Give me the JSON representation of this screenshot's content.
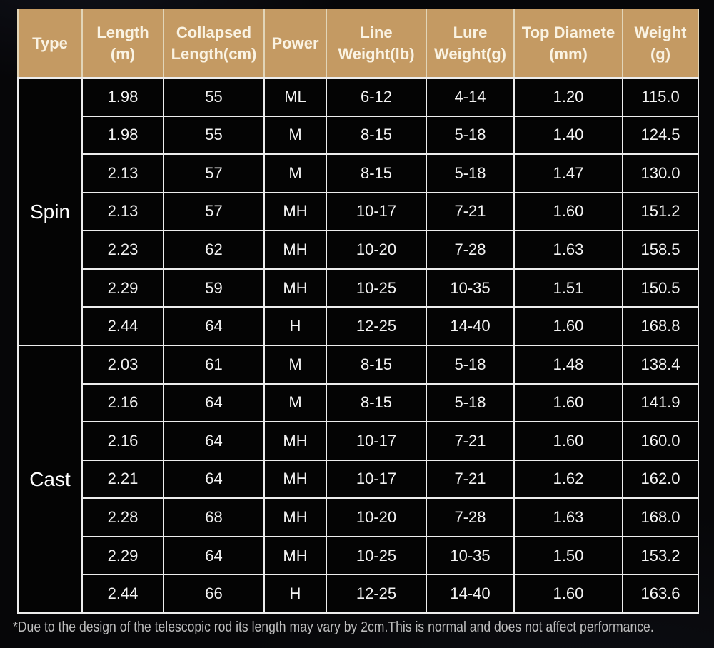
{
  "chart_data": {
    "type": "table",
    "columns": [
      "Type",
      "Length (m)",
      "Collapsed Length(cm)",
      "Power",
      "Line Weight(lb)",
      "Lure Weight(g)",
      "Top Diamete (mm)",
      "Weight (g)"
    ],
    "header_lines": [
      [
        "Type",
        ""
      ],
      [
        "Length",
        "(m)"
      ],
      [
        "Collapsed",
        "Length(cm)"
      ],
      [
        "Power",
        ""
      ],
      [
        "Line",
        "Weight(lb)"
      ],
      [
        "Lure",
        "Weight(g)"
      ],
      [
        "Top Diamete",
        "(mm)"
      ],
      [
        "Weight",
        "(g)"
      ]
    ],
    "sections": [
      {
        "type": "Spin",
        "rows": [
          [
            "1.98",
            "55",
            "ML",
            "6-12",
            "4-14",
            "1.20",
            "115.0"
          ],
          [
            "1.98",
            "55",
            "M",
            "8-15",
            "5-18",
            "1.40",
            "124.5"
          ],
          [
            "2.13",
            "57",
            "M",
            "8-15",
            "5-18",
            "1.47",
            "130.0"
          ],
          [
            "2.13",
            "57",
            "MH",
            "10-17",
            "7-21",
            "1.60",
            "151.2"
          ],
          [
            "2.23",
            "62",
            "MH",
            "10-20",
            "7-28",
            "1.63",
            "158.5"
          ],
          [
            "2.29",
            "59",
            "MH",
            "10-25",
            "10-35",
            "1.51",
            "150.5"
          ],
          [
            "2.44",
            "64",
            "H",
            "12-25",
            "14-40",
            "1.60",
            "168.8"
          ]
        ]
      },
      {
        "type": "Cast",
        "rows": [
          [
            "2.03",
            "61",
            "M",
            "8-15",
            "5-18",
            "1.48",
            "138.4"
          ],
          [
            "2.16",
            "64",
            "M",
            "8-15",
            "5-18",
            "1.60",
            "141.9"
          ],
          [
            "2.16",
            "64",
            "MH",
            "10-17",
            "7-21",
            "1.60",
            "160.0"
          ],
          [
            "2.21",
            "64",
            "MH",
            "10-17",
            "7-21",
            "1.62",
            "162.0"
          ],
          [
            "2.28",
            "68",
            "MH",
            "10-20",
            "7-28",
            "1.63",
            "168.0"
          ],
          [
            "2.29",
            "64",
            "MH",
            "10-25",
            "10-35",
            "1.50",
            "153.2"
          ],
          [
            "2.44",
            "66",
            "H",
            "12-25",
            "14-40",
            "1.60",
            "163.6"
          ]
        ]
      }
    ],
    "footnote": "*Due to the design of the telescopic rod its length may vary by 2cm.This is normal and does not affect performance."
  },
  "colors": {
    "page_bg": "#060608",
    "header_bg": "#c49a63",
    "header_text": "#faf3e3",
    "cell_bg": "#040404",
    "cell_text": "#f3f3f3",
    "gridline": "#ededed",
    "header_divider": "#e2d5b8",
    "footnote_text": "#bdbdbd"
  }
}
